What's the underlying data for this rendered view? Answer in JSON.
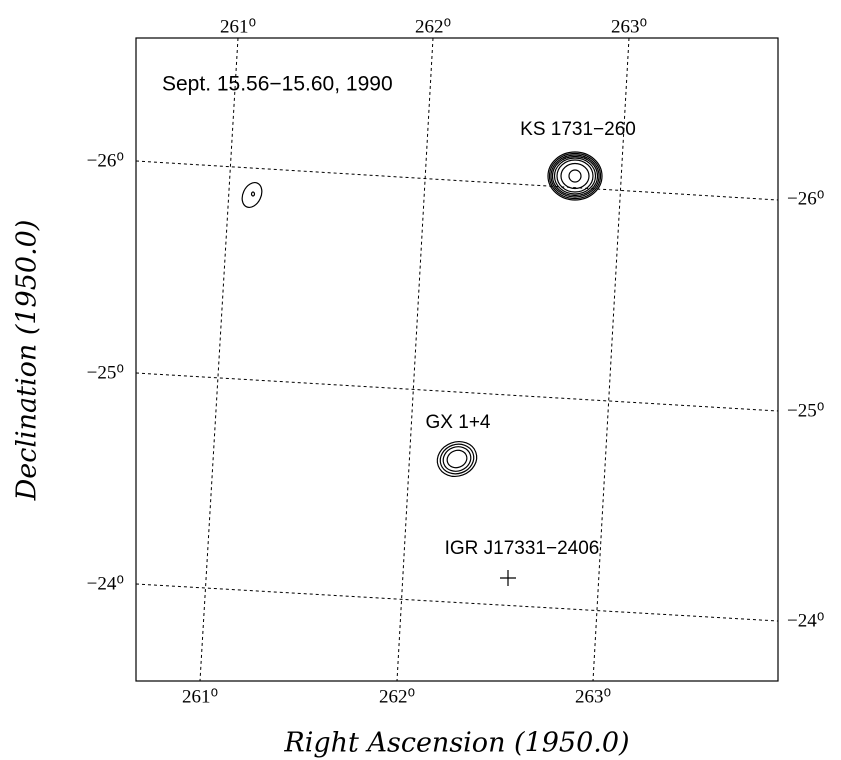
{
  "title": "Sept. 15.56−15.60, 1990",
  "x_axis_label": "Right Ascension (1950.0)",
  "y_axis_label": "Declination (1950.0)",
  "ra_labels_top": [
    "261⁰",
    "262⁰",
    "263⁰"
  ],
  "ra_labels_bottom": [
    "261⁰",
    "262⁰",
    "263⁰"
  ],
  "dec_labels_left": [
    "−26⁰",
    "−25⁰",
    "−24⁰"
  ],
  "dec_labels_right": [
    "−26⁰",
    "−25⁰",
    "−24⁰"
  ],
  "sources": [
    {
      "name": "KS 1731−260"
    },
    {
      "name": "GX 1+4"
    },
    {
      "name": "IGR J17331−2406"
    }
  ]
}
